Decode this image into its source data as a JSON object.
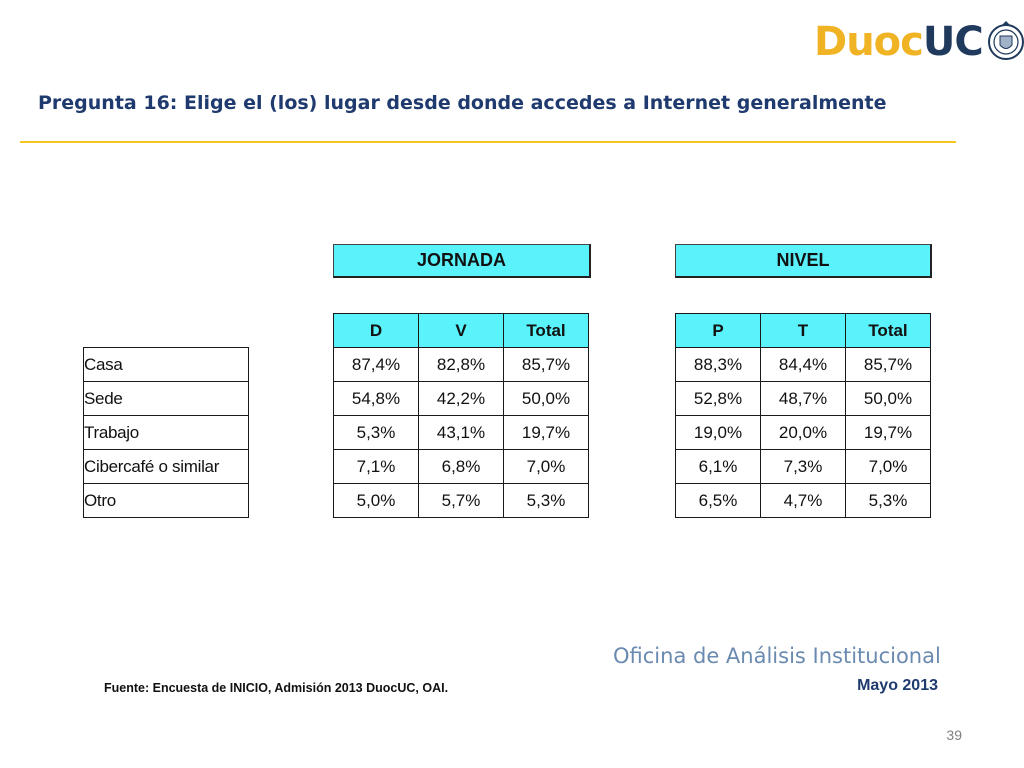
{
  "logo": {
    "part1": "Duoc",
    "part2": "UC"
  },
  "title": "Pregunta 16: Elige el (los) lugar desde donde accedes a Internet generalmente",
  "row_labels": [
    "Casa",
    "Sede",
    "Trabajo",
    "Cibercafé o similar",
    "Otro"
  ],
  "jornada": {
    "header": "JORNADA",
    "columns": [
      "D",
      "V",
      "Total"
    ],
    "rows": [
      [
        "87,4%",
        "82,8%",
        "85,7%"
      ],
      [
        "54,8%",
        "42,2%",
        "50,0%"
      ],
      [
        "5,3%",
        "43,1%",
        "19,7%"
      ],
      [
        "7,1%",
        "6,8%",
        "7,0%"
      ],
      [
        "5,0%",
        "5,7%",
        "5,3%"
      ]
    ]
  },
  "nivel": {
    "header": "NIVEL",
    "columns": [
      "P",
      "T",
      "Total"
    ],
    "rows": [
      [
        "88,3%",
        "84,4%",
        "85,7%"
      ],
      [
        "52,8%",
        "48,7%",
        "50,0%"
      ],
      [
        "19,0%",
        "20,0%",
        "19,7%"
      ],
      [
        "6,1%",
        "7,3%",
        "7,0%"
      ],
      [
        "6,5%",
        "4,7%",
        "5,3%"
      ]
    ]
  },
  "footer": {
    "source": "Fuente: Encuesta de INICIO, Admisión 2013 DuocUC, OAI.",
    "office": "Oficina de Análisis Institucional",
    "date": "Mayo 2013",
    "page_number": "39"
  },
  "colors": {
    "header_fill": "#5af2fb",
    "title": "#1f3a6e",
    "rule": "#f3c623",
    "logo_yellow": "#f0b323",
    "logo_blue": "#1f3a5c"
  }
}
